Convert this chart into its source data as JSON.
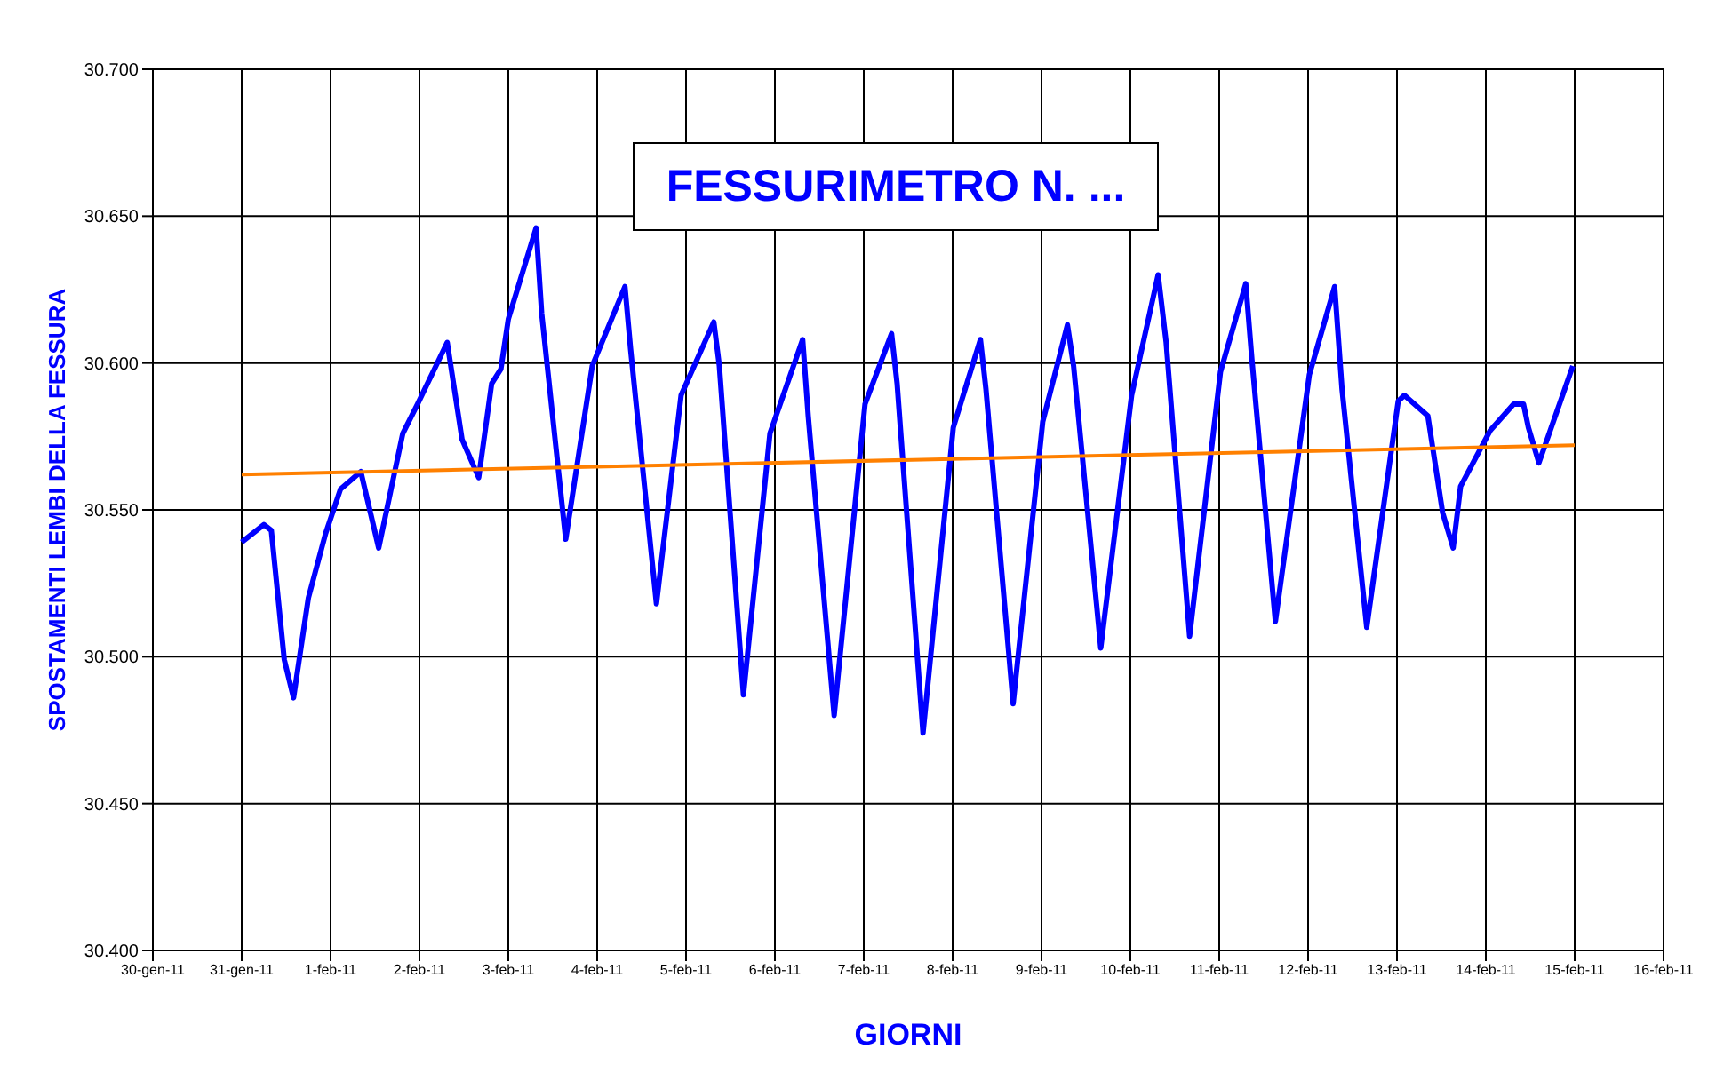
{
  "chart_data": {
    "type": "line",
    "title": "FESSURIMETRO N. ...",
    "xlabel": "GIORNI",
    "ylabel": "SPOSTAMENTI LEMBI DELLA FESSURA",
    "xlim": [
      "--01-30",
      "--02-16"
    ],
    "xticks": [
      {
        "value": "--01-30",
        "label": "30-gen-11"
      },
      {
        "value": "--01-31",
        "label": "31-gen-11"
      },
      {
        "value": "--02-01",
        "label": "1-feb-11"
      },
      {
        "value": "--02-02",
        "label": "2-feb-11"
      },
      {
        "value": "--02-03",
        "label": "3-feb-11"
      },
      {
        "value": "--02-04",
        "label": "4-feb-11"
      },
      {
        "value": "--02-05",
        "label": "5-feb-11"
      },
      {
        "value": "--02-06",
        "label": "6-feb-11"
      },
      {
        "value": "--02-07",
        "label": "7-feb-11"
      },
      {
        "value": "--02-08",
        "label": "8-feb-11"
      },
      {
        "value": "--02-09",
        "label": "9-feb-11"
      },
      {
        "value": "--02-10",
        "label": "10-feb-11"
      },
      {
        "value": "--02-11",
        "label": "11-feb-11"
      },
      {
        "value": "--02-12",
        "label": "12-feb-11"
      },
      {
        "value": "--02-13",
        "label": "13-feb-11"
      },
      {
        "value": "--02-14",
        "label": "14-feb-11"
      },
      {
        "value": "--02-15",
        "label": "15-feb-11"
      },
      {
        "value": "--02-16",
        "label": "16-feb-11"
      }
    ],
    "ylim": [
      30.4,
      30.7
    ],
    "yticks": [
      {
        "value": 30.4,
        "label": "30.400"
      },
      {
        "value": 30.45,
        "label": "30.450"
      },
      {
        "value": 30.5,
        "label": "30.500"
      },
      {
        "value": 30.55,
        "label": "30.550"
      },
      {
        "value": 30.6,
        "label": "30.600"
      },
      {
        "value": 30.65,
        "label": "30.650"
      },
      {
        "value": 30.7,
        "label": "30.700"
      }
    ],
    "grid": true,
    "legend": false,
    "marker": "none",
    "line_style": "solid",
    "series": [
      {
        "type": "line",
        "color": "#0000ff",
        "x": [
          "--01-31T00:00",
          "--01-31T06:00",
          "--01-31T08:00",
          "--01-31T11:30",
          "--01-31T14:00",
          "--01-31T18:00",
          "--01-31T22:40",
          "--02-01T02:40",
          "--02-01T08:10",
          "--02-01T13:00",
          "--02-01T19:30",
          "--02-01T23:30",
          "--02-02T07:30",
          "--02-02T11:30",
          "--02-02T16:00",
          "--02-02T19:30",
          "--02-02T22:00",
          "--02-03T00:00",
          "--02-03T07:30",
          "--02-03T09:00",
          "--02-03T15:30",
          "--02-03T22:40",
          "--02-04T07:30",
          "--02-04T09:00",
          "--02-04T16:00",
          "--02-04T22:40",
          "--02-05T07:30",
          "--02-05T09:00",
          "--02-05T15:30",
          "--02-05T22:40",
          "--02-06T07:30",
          "--02-06T09:00",
          "--02-06T16:00",
          "--02-07T00:20",
          "--02-07T07:30",
          "--02-07T09:00",
          "--02-07T16:00",
          "--02-08T00:10",
          "--02-08T07:30",
          "--02-08T09:00",
          "--02-08T16:20",
          "--02-09T00:20",
          "--02-09T07:00",
          "--02-09T08:40",
          "--02-09T16:00",
          "--02-10T00:20",
          "--02-10T07:30",
          "--02-10T09:40",
          "--02-10T16:00",
          "--02-11T00:20",
          "--02-11T07:10",
          "--02-11T08:50",
          "--02-11T15:10",
          "--02-12T00:20",
          "--02-12T07:10",
          "--02-12T09:10",
          "--02-12T15:50",
          "--02-13T00:20",
          "--02-13T02:00",
          "--02-13T08:20",
          "--02-13T12:20",
          "--02-13T15:10",
          "--02-13T17:10",
          "--02-14T01:10",
          "--02-14T07:30",
          "--02-14T10:10",
          "--02-14T11:30",
          "--02-14T14:20",
          "--02-14T23:30"
        ],
        "values": [
          30.539,
          30.545,
          30.543,
          30.499,
          30.486,
          30.52,
          30.542,
          30.557,
          30.563,
          30.537,
          30.576,
          30.586,
          30.607,
          30.574,
          30.561,
          30.593,
          30.598,
          30.615,
          30.646,
          30.617,
          30.54,
          30.599,
          30.626,
          30.605,
          30.518,
          30.589,
          30.614,
          30.599,
          30.487,
          30.576,
          30.608,
          30.582,
          30.48,
          30.586,
          30.61,
          30.593,
          30.474,
          30.578,
          30.608,
          30.591,
          30.484,
          30.58,
          30.613,
          30.599,
          30.503,
          30.589,
          30.63,
          30.607,
          30.507,
          30.597,
          30.627,
          30.601,
          30.512,
          30.596,
          30.626,
          30.591,
          30.51,
          30.587,
          30.589,
          30.582,
          30.549,
          30.537,
          30.558,
          30.577,
          30.586,
          30.586,
          30.578,
          30.566,
          30.599
        ]
      },
      {
        "type": "line",
        "color": "#ff8000",
        "x": [
          "--01-31T00:00",
          "--02-15T00:00"
        ],
        "values": [
          30.562,
          30.572
        ]
      }
    ]
  }
}
